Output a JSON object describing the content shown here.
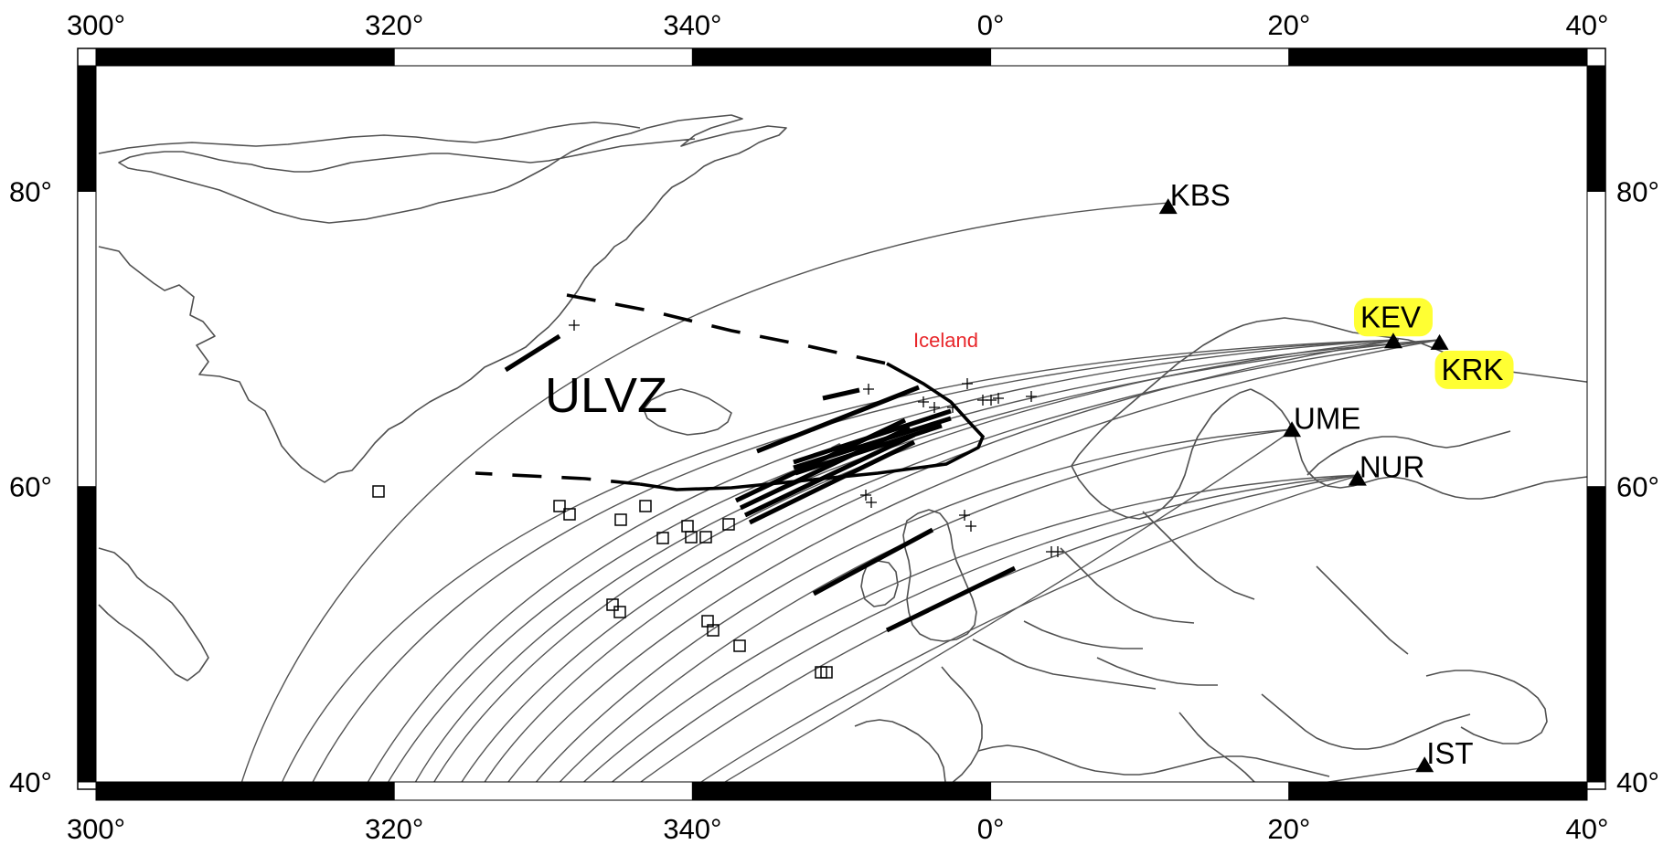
{
  "map": {
    "lon_ticks": [
      "300°",
      "320°",
      "340°",
      "0°",
      "20°",
      "40°"
    ],
    "lat_ticks": [
      "80°",
      "60°",
      "40°"
    ],
    "extent": {
      "lon_min": 300,
      "lon_max": 400,
      "lat_min": 40,
      "lat_max": 88.5
    },
    "region_label": "ULVZ",
    "place_label": "Iceland",
    "place_label_color": "#e8262a",
    "highlight_color": "#ffff33",
    "stations": [
      {
        "code": "KBS",
        "lon": 11.9,
        "lat": 78.9,
        "highlighted": false
      },
      {
        "code": "KEV",
        "lon": 27.0,
        "lat": 69.8,
        "highlighted": true
      },
      {
        "code": "KRK",
        "lon": 30.1,
        "lat": 69.7,
        "highlighted": true
      },
      {
        "code": "UME",
        "lon": 20.2,
        "lat": 63.8,
        "highlighted": false
      },
      {
        "code": "NUR",
        "lon": 24.6,
        "lat": 60.5,
        "highlighted": false
      },
      {
        "code": "IST",
        "lon": 29.1,
        "lat": 41.1,
        "highlighted": false
      }
    ]
  }
}
